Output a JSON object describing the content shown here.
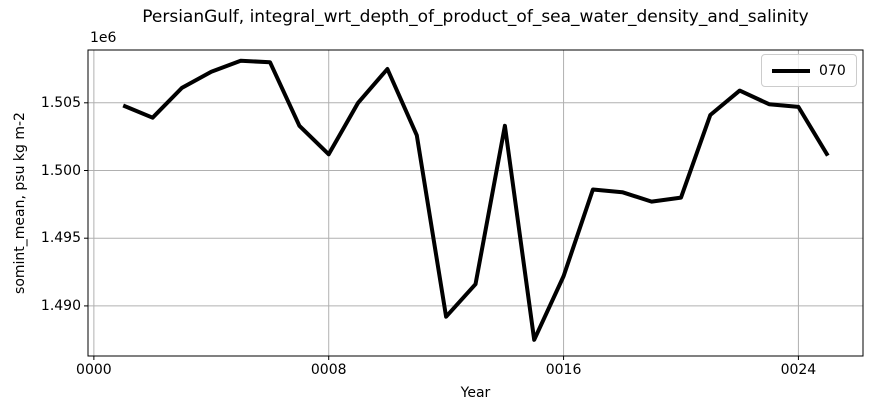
{
  "chart_data": {
    "type": "line",
    "title": "PersianGulf, integral_wrt_depth_of_product_of_sea_water_density_and_salinity",
    "xlabel": "Year",
    "ylabel": "somint_mean, psu kg m-2",
    "y_offset_text": "1e6",
    "y_unit_note": "y values are in units of 1e6 (psu kg m-2)",
    "x": [
      1,
      2,
      3,
      4,
      5,
      6,
      7,
      8,
      9,
      10,
      11,
      12,
      13,
      14,
      15,
      16,
      17,
      18,
      19,
      20,
      21,
      22,
      23,
      24,
      25
    ],
    "series": [
      {
        "name": "070",
        "color": "#000000",
        "values": [
          1.5048,
          1.5039,
          1.5061,
          1.5073,
          1.5081,
          1.508,
          1.5033,
          1.5012,
          1.505,
          1.5075,
          1.5026,
          1.4892,
          1.4916,
          1.5033,
          1.4875,
          1.4922,
          1.4986,
          1.4984,
          1.4977,
          1.498,
          1.5041,
          1.5059,
          1.5049,
          1.5047,
          1.5011
        ]
      }
    ],
    "xlim": [
      -0.2,
      26.2
    ],
    "ylim": [
      1.4863,
      1.5089
    ],
    "xticks": {
      "values": [
        0,
        8,
        16,
        24
      ],
      "labels": [
        "0000",
        "0008",
        "0016",
        "0024"
      ]
    },
    "yticks": {
      "values": [
        1.49,
        1.495,
        1.5,
        1.505
      ],
      "labels": [
        "1.490",
        "1.495",
        "1.500",
        "1.505"
      ]
    },
    "grid": true,
    "grid_color": "#b0b0b0",
    "spine_color": "#000000",
    "background": "#ffffff",
    "legend": {
      "position": "upper right",
      "entries": [
        "070"
      ]
    }
  }
}
